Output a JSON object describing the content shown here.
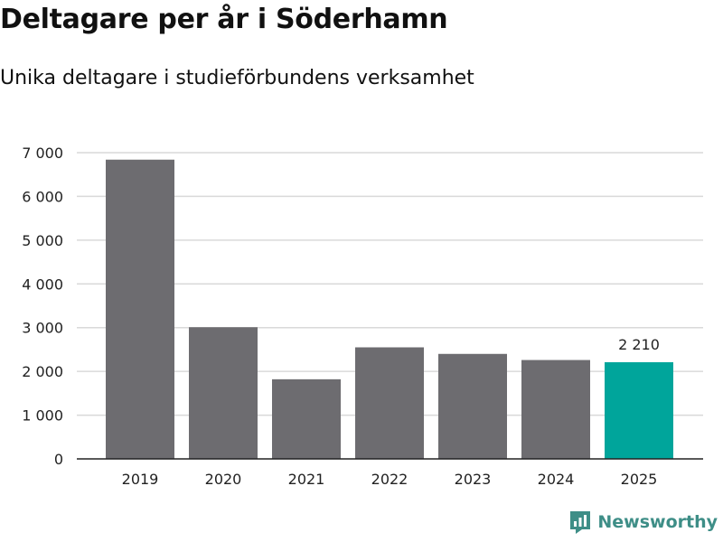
{
  "header": {
    "title": "Deltagare per år i Söderhamn",
    "subtitle": "Unika deltagare i studieförbundens verksamhet"
  },
  "brand": {
    "name": "Newsworthy",
    "icon": "newsworthy-logo-icon",
    "color": "#3e8e87"
  },
  "chart_data": {
    "type": "bar",
    "categories": [
      "2019",
      "2020",
      "2021",
      "2022",
      "2023",
      "2024",
      "2025"
    ],
    "values": [
      6840,
      3010,
      1820,
      2550,
      2400,
      2260,
      2210
    ],
    "ylim": [
      0,
      7000
    ],
    "yticks": [
      0,
      1000,
      2000,
      3000,
      4000,
      5000,
      6000,
      7000
    ],
    "ytick_labels": [
      "0",
      "1 000",
      "2 000",
      "3 000",
      "4 000",
      "5 000",
      "6 000",
      "7 000"
    ],
    "grid": true,
    "bar_color": "#6d6c70",
    "highlight_color": "#00a59b",
    "highlight_index": 6,
    "data_labels": [
      {
        "index": 6,
        "text": "2 210"
      }
    ]
  }
}
